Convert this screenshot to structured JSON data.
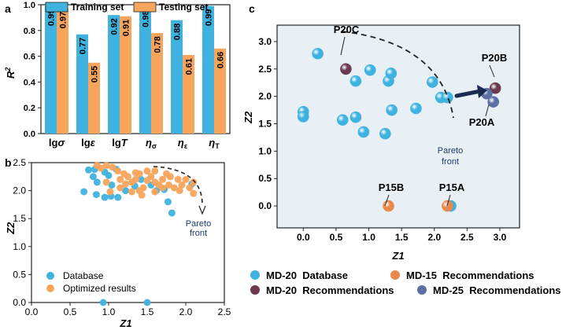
{
  "panel_labels": {
    "a": "a",
    "b": "b",
    "c": "c"
  },
  "chart_data": [
    {
      "panel": "a",
      "type": "bar",
      "ylabel_main": "R",
      "ylabel_sup": "2",
      "ylim": [
        0,
        1.0
      ],
      "yticks": [
        "0.0",
        "0.2",
        "0.4",
        "0.6",
        "0.8",
        "1.0"
      ],
      "categories": [
        {
          "main": "lg",
          "sub": "",
          "sym": "σ"
        },
        {
          "main": "lg",
          "sub": "",
          "sym": "ε"
        },
        {
          "main": "lg",
          "sub": "",
          "sym": "T"
        },
        {
          "main": "η",
          "sub": "σ",
          "sym": ""
        },
        {
          "main": "η",
          "sub": "ε",
          "sym": ""
        },
        {
          "main": "η",
          "sub": "T",
          "sym": ""
        }
      ],
      "series": [
        {
          "name": "Training set",
          "color": "#3fb2e0",
          "values": [
            0.99,
            0.77,
            0.92,
            0.98,
            0.88,
            0.99
          ],
          "labels": [
            "0.99",
            "0.77",
            "0.92",
            "0.98",
            "0.88",
            "0.99"
          ]
        },
        {
          "name": "Testing set",
          "color": "#f7a45c",
          "values": [
            0.97,
            0.55,
            0.91,
            0.78,
            0.61,
            0.66
          ],
          "labels": [
            "0.97",
            "0.55",
            "0.91",
            "0.78",
            "0.61",
            "0.66"
          ]
        }
      ]
    },
    {
      "panel": "b",
      "type": "scatter",
      "xlabel": "Z1",
      "ylabel": "Z2",
      "xlim": [
        0.0,
        2.5
      ],
      "ylim": [
        0.0,
        2.5
      ],
      "xticks": [
        "0.0",
        "0.5",
        "1.0",
        "1.5",
        "2.0",
        "2.5"
      ],
      "yticks": [
        "0.0",
        "0.5",
        "1.0",
        "1.5",
        "2.0",
        "2.5"
      ],
      "annotation": {
        "line1": "Pareto",
        "line2": "front"
      },
      "series": [
        {
          "name": "Database",
          "color": "#3fb2e0",
          "points": [
            [
              0.74,
              2.37
            ],
            [
              0.82,
              2.38
            ],
            [
              0.95,
              2.33
            ],
            [
              0.85,
              2.15
            ],
            [
              1.0,
              2.27
            ],
            [
              1.1,
              2.38
            ],
            [
              0.8,
              2.25
            ],
            [
              0.68,
              1.98
            ],
            [
              0.84,
              1.93
            ],
            [
              1.03,
              1.9
            ],
            [
              1.12,
              1.88
            ],
            [
              0.95,
              1.88
            ],
            [
              1.22,
              2.0
            ],
            [
              1.42,
              2.2
            ],
            [
              1.55,
              2.1
            ],
            [
              1.62,
              2.0
            ],
            [
              1.72,
              2.02
            ],
            [
              1.77,
              1.8
            ],
            [
              1.82,
              1.6
            ],
            [
              2.08,
              2.12
            ],
            [
              1.34,
              2.08
            ],
            [
              1.04,
              2.1
            ],
            [
              0.93,
              0.0
            ],
            [
              1.5,
              0.0
            ]
          ]
        },
        {
          "name": "Optimized results",
          "color": "#f7a45c",
          "points": [
            [
              0.85,
              2.45
            ],
            [
              0.9,
              2.4
            ],
            [
              0.97,
              2.15
            ],
            [
              1.05,
              2.42
            ],
            [
              1.12,
              2.35
            ],
            [
              1.15,
              2.2
            ],
            [
              1.2,
              2.3
            ],
            [
              1.25,
              2.25
            ],
            [
              1.3,
              2.15
            ],
            [
              1.35,
              2.2
            ],
            [
              1.4,
              2.3
            ],
            [
              1.45,
              2.05
            ],
            [
              1.5,
              2.35
            ],
            [
              1.55,
              2.25
            ],
            [
              1.6,
              2.35
            ],
            [
              1.65,
              2.1
            ],
            [
              1.7,
              2.2
            ],
            [
              1.75,
              2.3
            ],
            [
              1.78,
              2.1
            ],
            [
              1.8,
              2.25
            ],
            [
              1.85,
              2.05
            ],
            [
              1.9,
              2.2
            ],
            [
              1.95,
              2.1
            ],
            [
              2.0,
              2.2
            ],
            [
              2.05,
              2.05
            ],
            [
              2.1,
              2.15
            ],
            [
              1.3,
              1.98
            ],
            [
              1.4,
              2.0
            ],
            [
              1.6,
              2.15
            ],
            [
              1.7,
              2.05
            ],
            [
              1.5,
              2.18
            ],
            [
              1.22,
              2.12
            ],
            [
              1.35,
              2.32
            ],
            [
              0.97,
              2.45
            ],
            [
              1.43,
              1.92
            ],
            [
              1.6,
              1.98
            ],
            [
              1.15,
              2.05
            ],
            [
              1.02,
              1.98
            ],
            [
              1.92,
              2.0
            ],
            [
              2.1,
              1.95
            ]
          ]
        }
      ]
    },
    {
      "panel": "c",
      "type": "scatter",
      "xlabel": "Z1",
      "ylabel": "Z2",
      "xlim": [
        -0.4,
        3.3
      ],
      "ylim": [
        -0.4,
        3.3
      ],
      "xticks": [
        "0.0",
        "0.5",
        "1.0",
        "1.5",
        "2.0",
        "2.5",
        "3.0"
      ],
      "yticks": [
        "0.0",
        "0.5",
        "1.0",
        "1.5",
        "2.0",
        "2.5",
        "3.0"
      ],
      "annotation": {
        "line1": "Pareto",
        "line2": "front"
      },
      "point_labels": [
        {
          "text": "P20C",
          "point": [
            0.65,
            2.5
          ]
        },
        {
          "text": "P20B",
          "point": [
            2.93,
            2.15
          ]
        },
        {
          "text": "P20A",
          "point": [
            2.9,
            1.9
          ]
        },
        {
          "text": "P15B",
          "point": [
            1.3,
            0.0
          ]
        },
        {
          "text": "P15A",
          "point": [
            2.2,
            0.0
          ]
        }
      ],
      "series": [
        {
          "name": "MD-20  Database",
          "color": "#3fb2e0",
          "points": [
            [
              0.0,
              1.72
            ],
            [
              0.0,
              1.63
            ],
            [
              0.22,
              2.78
            ],
            [
              0.6,
              1.57
            ],
            [
              0.92,
              1.35
            ],
            [
              0.8,
              2.28
            ],
            [
              0.8,
              1.62
            ],
            [
              1.02,
              2.48
            ],
            [
              1.25,
              1.32
            ],
            [
              1.3,
              2.28
            ],
            [
              1.34,
              2.42
            ],
            [
              1.35,
              1.75
            ],
            [
              1.72,
              1.78
            ],
            [
              1.97,
              2.26
            ],
            [
              2.1,
              1.98
            ],
            [
              2.25,
              0.0
            ],
            [
              2.2,
              1.98
            ]
          ]
        },
        {
          "name": "MD-15  Recommendations",
          "color": "#e8884a",
          "points": [
            [
              1.3,
              0.0
            ],
            [
              2.2,
              0.0
            ]
          ]
        },
        {
          "name": "MD-20  Recommendations",
          "color": "#6b3a4e",
          "points": [
            [
              0.65,
              2.5
            ],
            [
              2.93,
              2.15
            ]
          ]
        },
        {
          "name": "MD-25  Recommendations",
          "color": "#5b6fa3",
          "points": [
            [
              2.8,
              2.05
            ],
            [
              2.9,
              1.9
            ]
          ]
        }
      ]
    }
  ]
}
